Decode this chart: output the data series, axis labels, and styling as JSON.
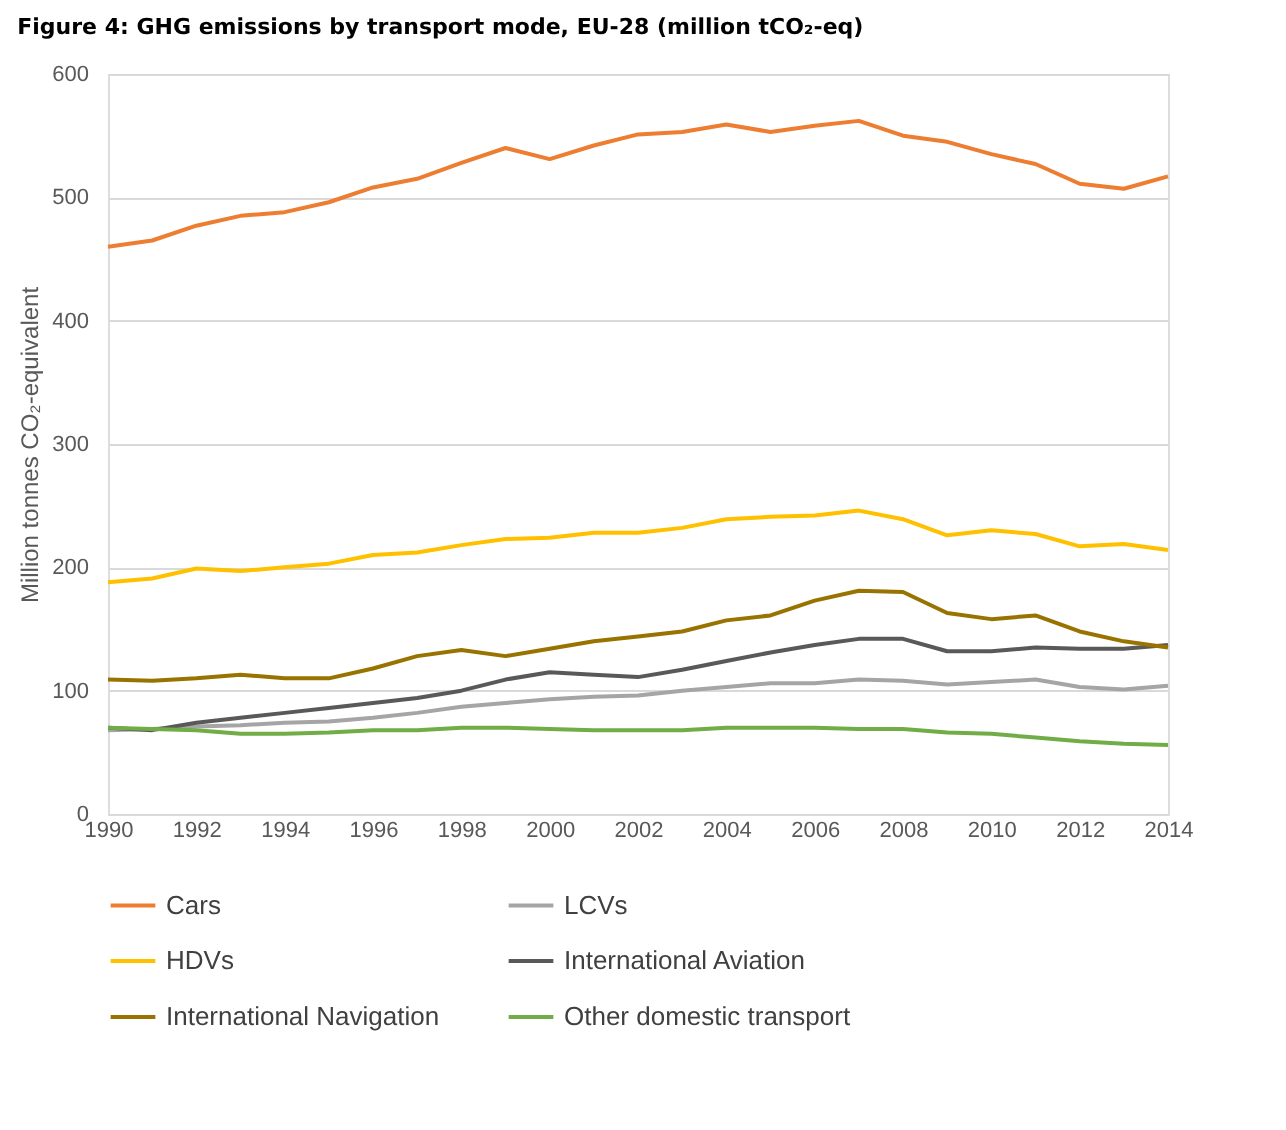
{
  "chart_data": {
    "type": "line",
    "title": "Figure 4:  GHG emissions by transport mode, EU-28 (million tCO₂-eq)",
    "ylabel": "Million tonnes CO₂-equivalent",
    "x": [
      1990,
      1991,
      1992,
      1993,
      1994,
      1995,
      1996,
      1997,
      1998,
      1999,
      2000,
      2001,
      2002,
      2003,
      2004,
      2005,
      2006,
      2007,
      2008,
      2009,
      2010,
      2011,
      2012,
      2013,
      2014
    ],
    "xlim": [
      1990,
      2014
    ],
    "xticks": [
      1990,
      1992,
      1994,
      1996,
      1998,
      2000,
      2002,
      2004,
      2006,
      2008,
      2010,
      2012,
      2014
    ],
    "ylim": [
      0,
      600
    ],
    "yticks": [
      0,
      100,
      200,
      300,
      400,
      500,
      600
    ],
    "grid": "y",
    "legend": "bottom",
    "marker": "none",
    "line_style": "solid",
    "series": [
      {
        "name": "Cars",
        "color": "#ed7d31",
        "values": [
          460,
          465,
          477,
          485,
          488,
          496,
          508,
          515,
          528,
          540,
          531,
          542,
          551,
          553,
          559,
          553,
          558,
          562,
          550,
          545,
          535,
          527,
          511,
          507,
          517
        ]
      },
      {
        "name": "LCVs",
        "color": "#a5a5a5",
        "values": [
          68,
          69,
          71,
          72,
          74,
          75,
          78,
          82,
          87,
          90,
          93,
          95,
          96,
          100,
          103,
          106,
          106,
          109,
          108,
          105,
          107,
          109,
          103,
          101,
          104
        ]
      },
      {
        "name": "HDVs",
        "color": "#ffc000",
        "values": [
          188,
          191,
          199,
          197,
          200,
          203,
          210,
          212,
          218,
          223,
          224,
          228,
          228,
          232,
          239,
          241,
          242,
          246,
          239,
          226,
          230,
          227,
          217,
          219,
          214
        ]
      },
      {
        "name": "International Aviation",
        "color": "#595959",
        "values": [
          70,
          68,
          74,
          78,
          82,
          86,
          90,
          94,
          100,
          109,
          115,
          113,
          111,
          117,
          124,
          131,
          137,
          142,
          142,
          132,
          132,
          135,
          134,
          134,
          137
        ]
      },
      {
        "name": "International Navigation",
        "color": "#997300",
        "values": [
          109,
          108,
          110,
          113,
          110,
          110,
          118,
          128,
          133,
          128,
          134,
          140,
          144,
          148,
          157,
          161,
          173,
          181,
          180,
          163,
          158,
          161,
          148,
          140,
          135
        ]
      },
      {
        "name": "Other domestic transport",
        "color": "#70ad47",
        "values": [
          70,
          69,
          68,
          65,
          65,
          66,
          68,
          68,
          70,
          70,
          69,
          68,
          68,
          68,
          70,
          70,
          70,
          69,
          69,
          66,
          65,
          62,
          59,
          57,
          56
        ]
      }
    ]
  }
}
